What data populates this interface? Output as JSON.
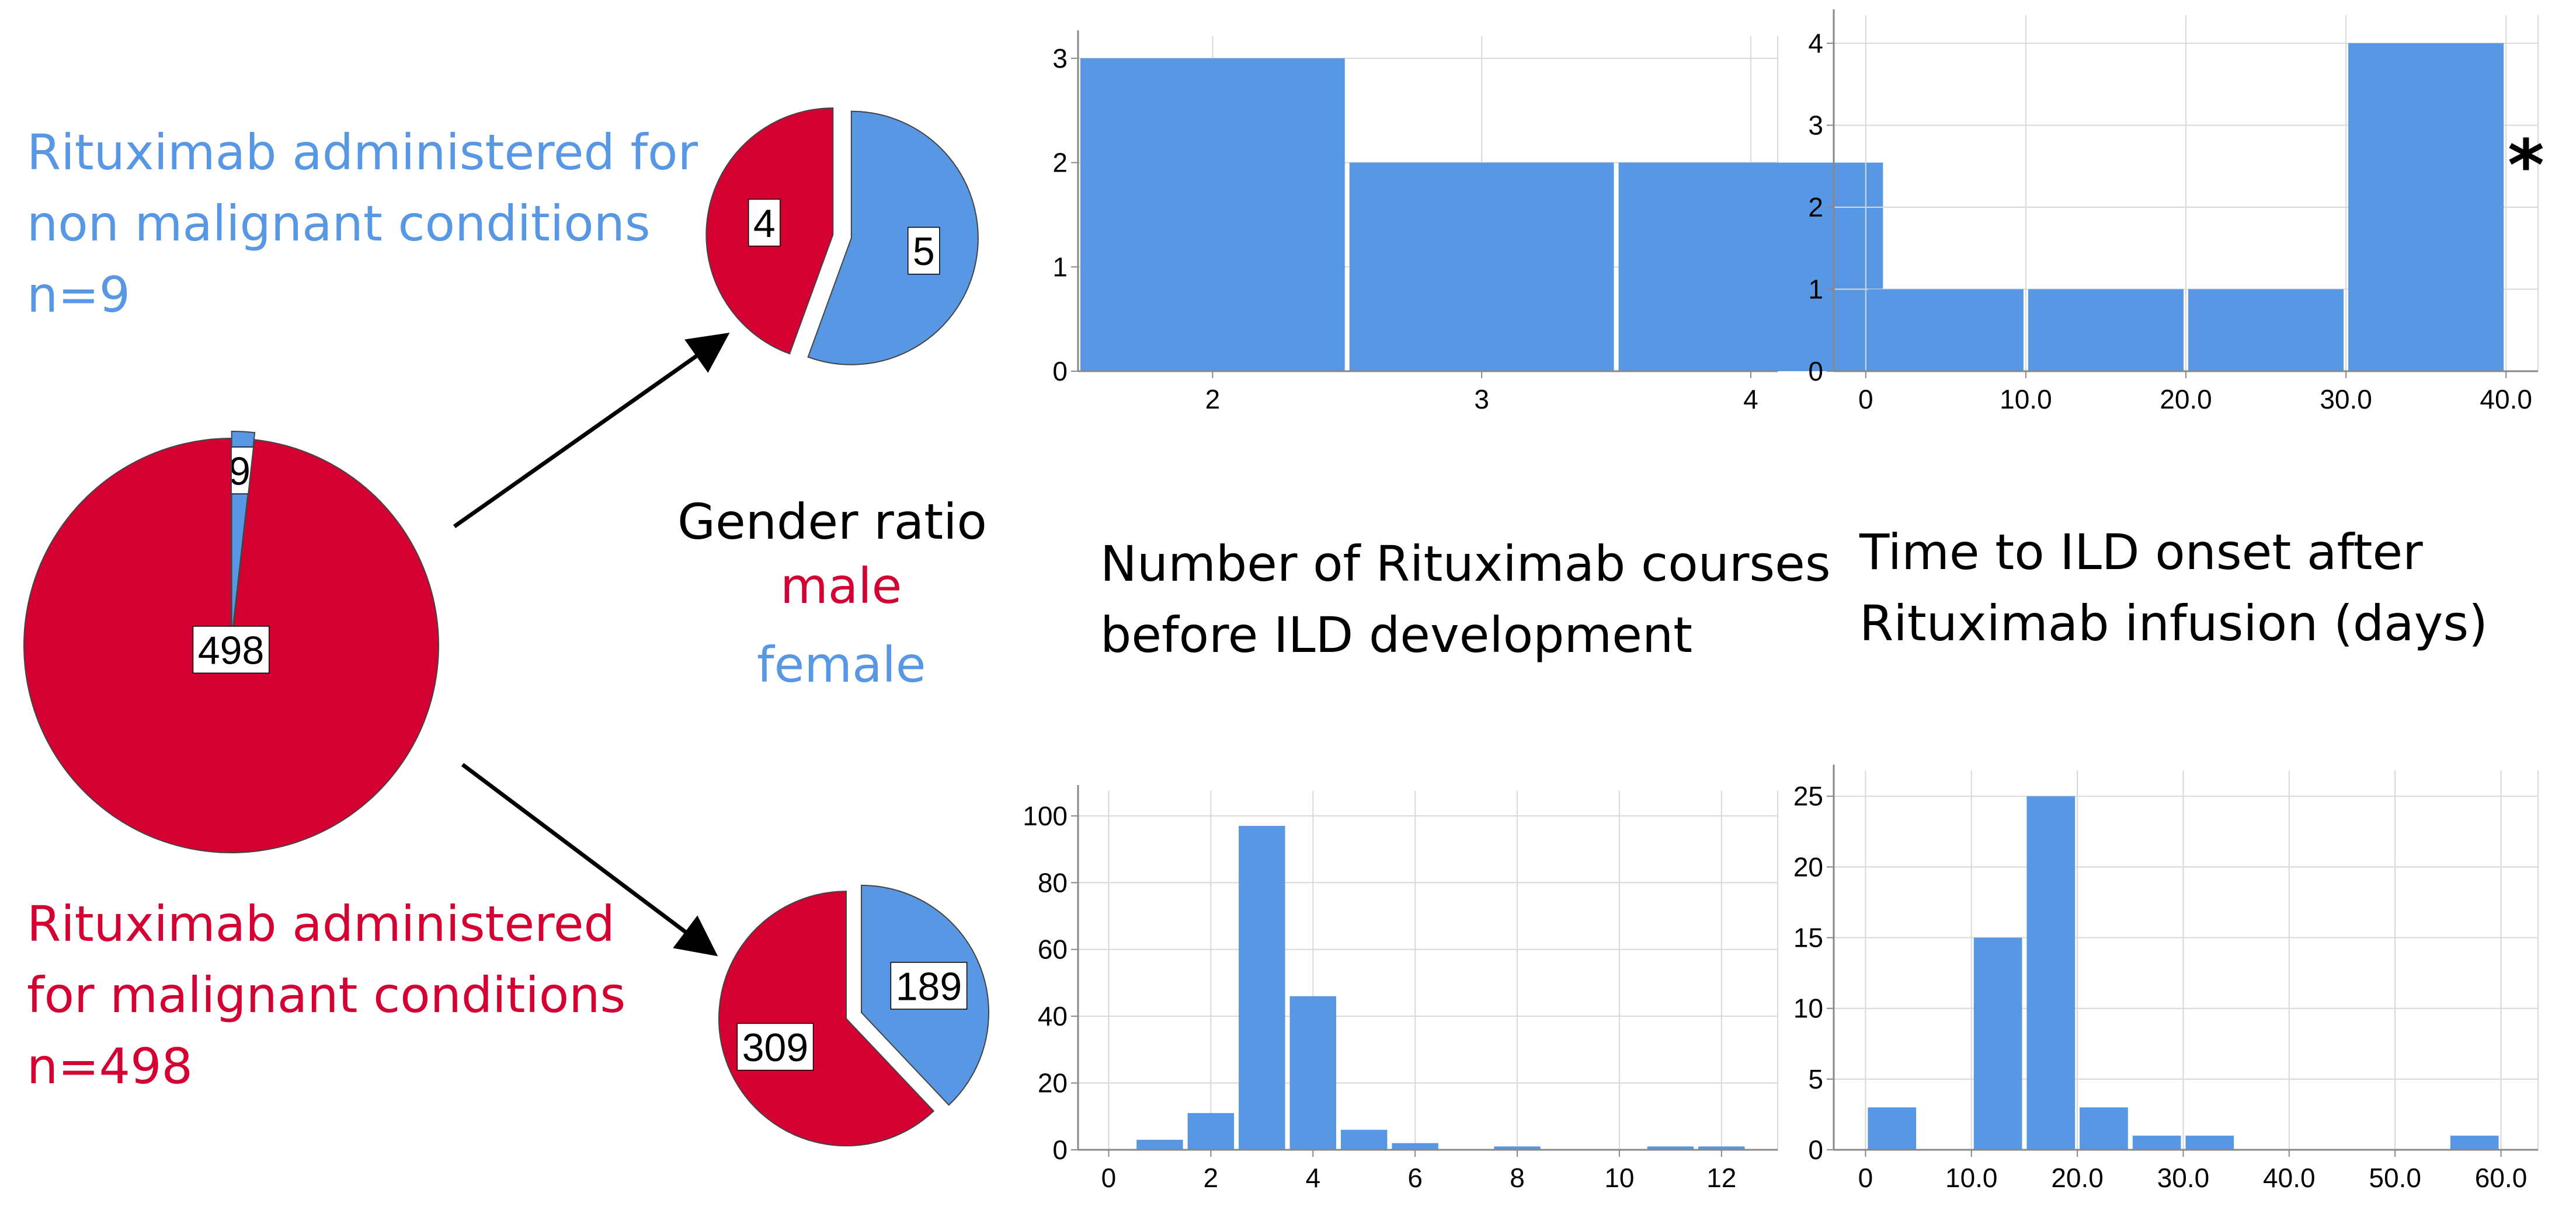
{
  "captions": {
    "non_malignant": [
      "Rituximab administered for",
      "non malignant conditions",
      "n=9"
    ],
    "malignant": [
      "Rituximab administered",
      "for malignant conditions",
      "n=498"
    ],
    "gender_title": "Gender ratio",
    "male": "male",
    "female": "female",
    "courses": [
      "Number of Rituximab courses",
      "before ILD development"
    ],
    "onset": [
      "Time to ILD onset after",
      "Rituximab infusion (days)"
    ],
    "asterisk": "*"
  },
  "colors": {
    "red": "#d50032",
    "blue": "#5897e3",
    "grid": "#d8d8d8",
    "axis": "#888888",
    "text": "#000000"
  },
  "chart_data": [
    {
      "type": "pie",
      "name_key": "overall",
      "labels": [
        "9",
        "498"
      ],
      "values": [
        9,
        498
      ],
      "colors": [
        "#5897e3",
        "#d50032"
      ]
    },
    {
      "type": "pie",
      "name_key": "non_malignant_gender",
      "labels": [
        "5",
        "4"
      ],
      "values": [
        5,
        4
      ],
      "colors": [
        "#5897e3",
        "#d50032"
      ]
    },
    {
      "type": "pie",
      "name_key": "malignant_gender",
      "labels": [
        "189",
        "309"
      ],
      "values": [
        189,
        309
      ],
      "colors": [
        "#5897e3",
        "#d50032"
      ]
    },
    {
      "type": "bar",
      "name_key": "courses_non_malignant",
      "x_ticks": [
        "2",
        "3",
        "4"
      ],
      "y_ticks": [
        "0",
        "1",
        "2",
        "3"
      ],
      "bins": [
        [
          1.5,
          2.5,
          3
        ],
        [
          2.5,
          3.5,
          2
        ],
        [
          3.5,
          4.5,
          2
        ]
      ],
      "xlim": [
        1.5,
        4.1
      ],
      "ylim": [
        0,
        3.1
      ]
    },
    {
      "type": "bar",
      "name_key": "onset_non_malignant",
      "x_ticks": [
        "0",
        "10.0",
        "20.0",
        "30.0",
        "40.0"
      ],
      "y_ticks": [
        "0",
        "1",
        "2",
        "3",
        "4"
      ],
      "bins": [
        [
          0,
          10,
          1
        ],
        [
          10,
          20,
          1
        ],
        [
          20,
          30,
          1
        ],
        [
          30,
          40,
          4
        ]
      ],
      "xlim": [
        -2,
        42
      ],
      "ylim": [
        0,
        4.2
      ]
    },
    {
      "type": "bar",
      "name_key": "courses_malignant",
      "x_ticks": [
        "0",
        "2",
        "4",
        "6",
        "8",
        "10",
        "12"
      ],
      "y_ticks": [
        "0",
        "20",
        "40",
        "60",
        "80",
        "100"
      ],
      "bins": [
        [
          0.5,
          1.5,
          3
        ],
        [
          1.5,
          2.5,
          11
        ],
        [
          2.5,
          3.5,
          97
        ],
        [
          3.5,
          4.5,
          46
        ],
        [
          4.5,
          5.5,
          6
        ],
        [
          5.5,
          6.5,
          2
        ],
        [
          7.5,
          8.5,
          1
        ],
        [
          10.5,
          11.5,
          1
        ],
        [
          11.5,
          12.5,
          1
        ]
      ],
      "xlim": [
        -0.6,
        13.1
      ],
      "ylim": [
        0,
        104
      ]
    },
    {
      "type": "bar",
      "name_key": "onset_malignant",
      "x_ticks": [
        "0",
        "10.0",
        "20.0",
        "30.0",
        "40.0",
        "50.0",
        "60.0"
      ],
      "y_ticks": [
        "0",
        "5",
        "10",
        "15",
        "20",
        "25"
      ],
      "bins": [
        [
          0,
          5,
          3
        ],
        [
          10,
          15,
          15
        ],
        [
          15,
          20,
          25
        ],
        [
          20,
          25,
          3
        ],
        [
          25,
          30,
          1
        ],
        [
          30,
          35,
          1
        ],
        [
          55,
          60,
          1
        ]
      ],
      "xlim": [
        -3,
        63.5
      ],
      "ylim": [
        0,
        26
      ]
    }
  ]
}
